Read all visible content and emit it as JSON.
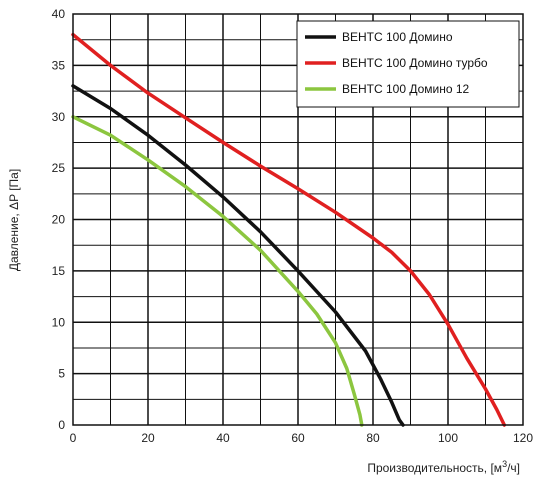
{
  "chart_data": {
    "type": "line",
    "xlabel": "Производительность, [м",
    "xlabel_sup": "3",
    "xlabel_tail": "/ч]",
    "ylabel": "Давление, ΔP [Па]",
    "xlim": [
      0,
      120
    ],
    "ylim": [
      0,
      40
    ],
    "x_ticks": [
      "0",
      "20",
      "40",
      "60",
      "80",
      "100",
      "120"
    ],
    "y_ticks": [
      "0",
      "5",
      "10",
      "15",
      "20",
      "25",
      "30",
      "35",
      "40"
    ],
    "grid": true,
    "legend_position": "top-right",
    "series": [
      {
        "name": "ВЕНТС 100 Домино",
        "color": "#111111",
        "points": [
          [
            0,
            33
          ],
          [
            10,
            30.8
          ],
          [
            20,
            28.2
          ],
          [
            30,
            25.3
          ],
          [
            40,
            22.2
          ],
          [
            50,
            18.8
          ],
          [
            60,
            15.0
          ],
          [
            70,
            11.0
          ],
          [
            78,
            7.2
          ],
          [
            82,
            4.5
          ],
          [
            85,
            2.2
          ],
          [
            87,
            0.5
          ],
          [
            88,
            0
          ]
        ]
      },
      {
        "name": "ВЕНТС 100 Домино турбо",
        "color": "#e02020",
        "points": [
          [
            0,
            38
          ],
          [
            10,
            35
          ],
          [
            20,
            32.3
          ],
          [
            30,
            29.9
          ],
          [
            40,
            27.5
          ],
          [
            50,
            25.2
          ],
          [
            60,
            23.0
          ],
          [
            70,
            20.7
          ],
          [
            80,
            18.2
          ],
          [
            85,
            16.8
          ],
          [
            90,
            15.0
          ],
          [
            95,
            12.7
          ],
          [
            100,
            9.8
          ],
          [
            105,
            6.5
          ],
          [
            110,
            3.5
          ],
          [
            113,
            1.5
          ],
          [
            115,
            0
          ]
        ]
      },
      {
        "name": "ВЕНТС 100 Домино 12",
        "color": "#8cc63f",
        "points": [
          [
            0,
            30
          ],
          [
            10,
            28.2
          ],
          [
            20,
            25.8
          ],
          [
            30,
            23.2
          ],
          [
            40,
            20.3
          ],
          [
            50,
            17.0
          ],
          [
            60,
            13.0
          ],
          [
            65,
            10.8
          ],
          [
            70,
            8.0
          ],
          [
            73,
            5.5
          ],
          [
            75,
            3.0
          ],
          [
            76.5,
            1.0
          ],
          [
            77,
            0
          ]
        ]
      }
    ]
  }
}
